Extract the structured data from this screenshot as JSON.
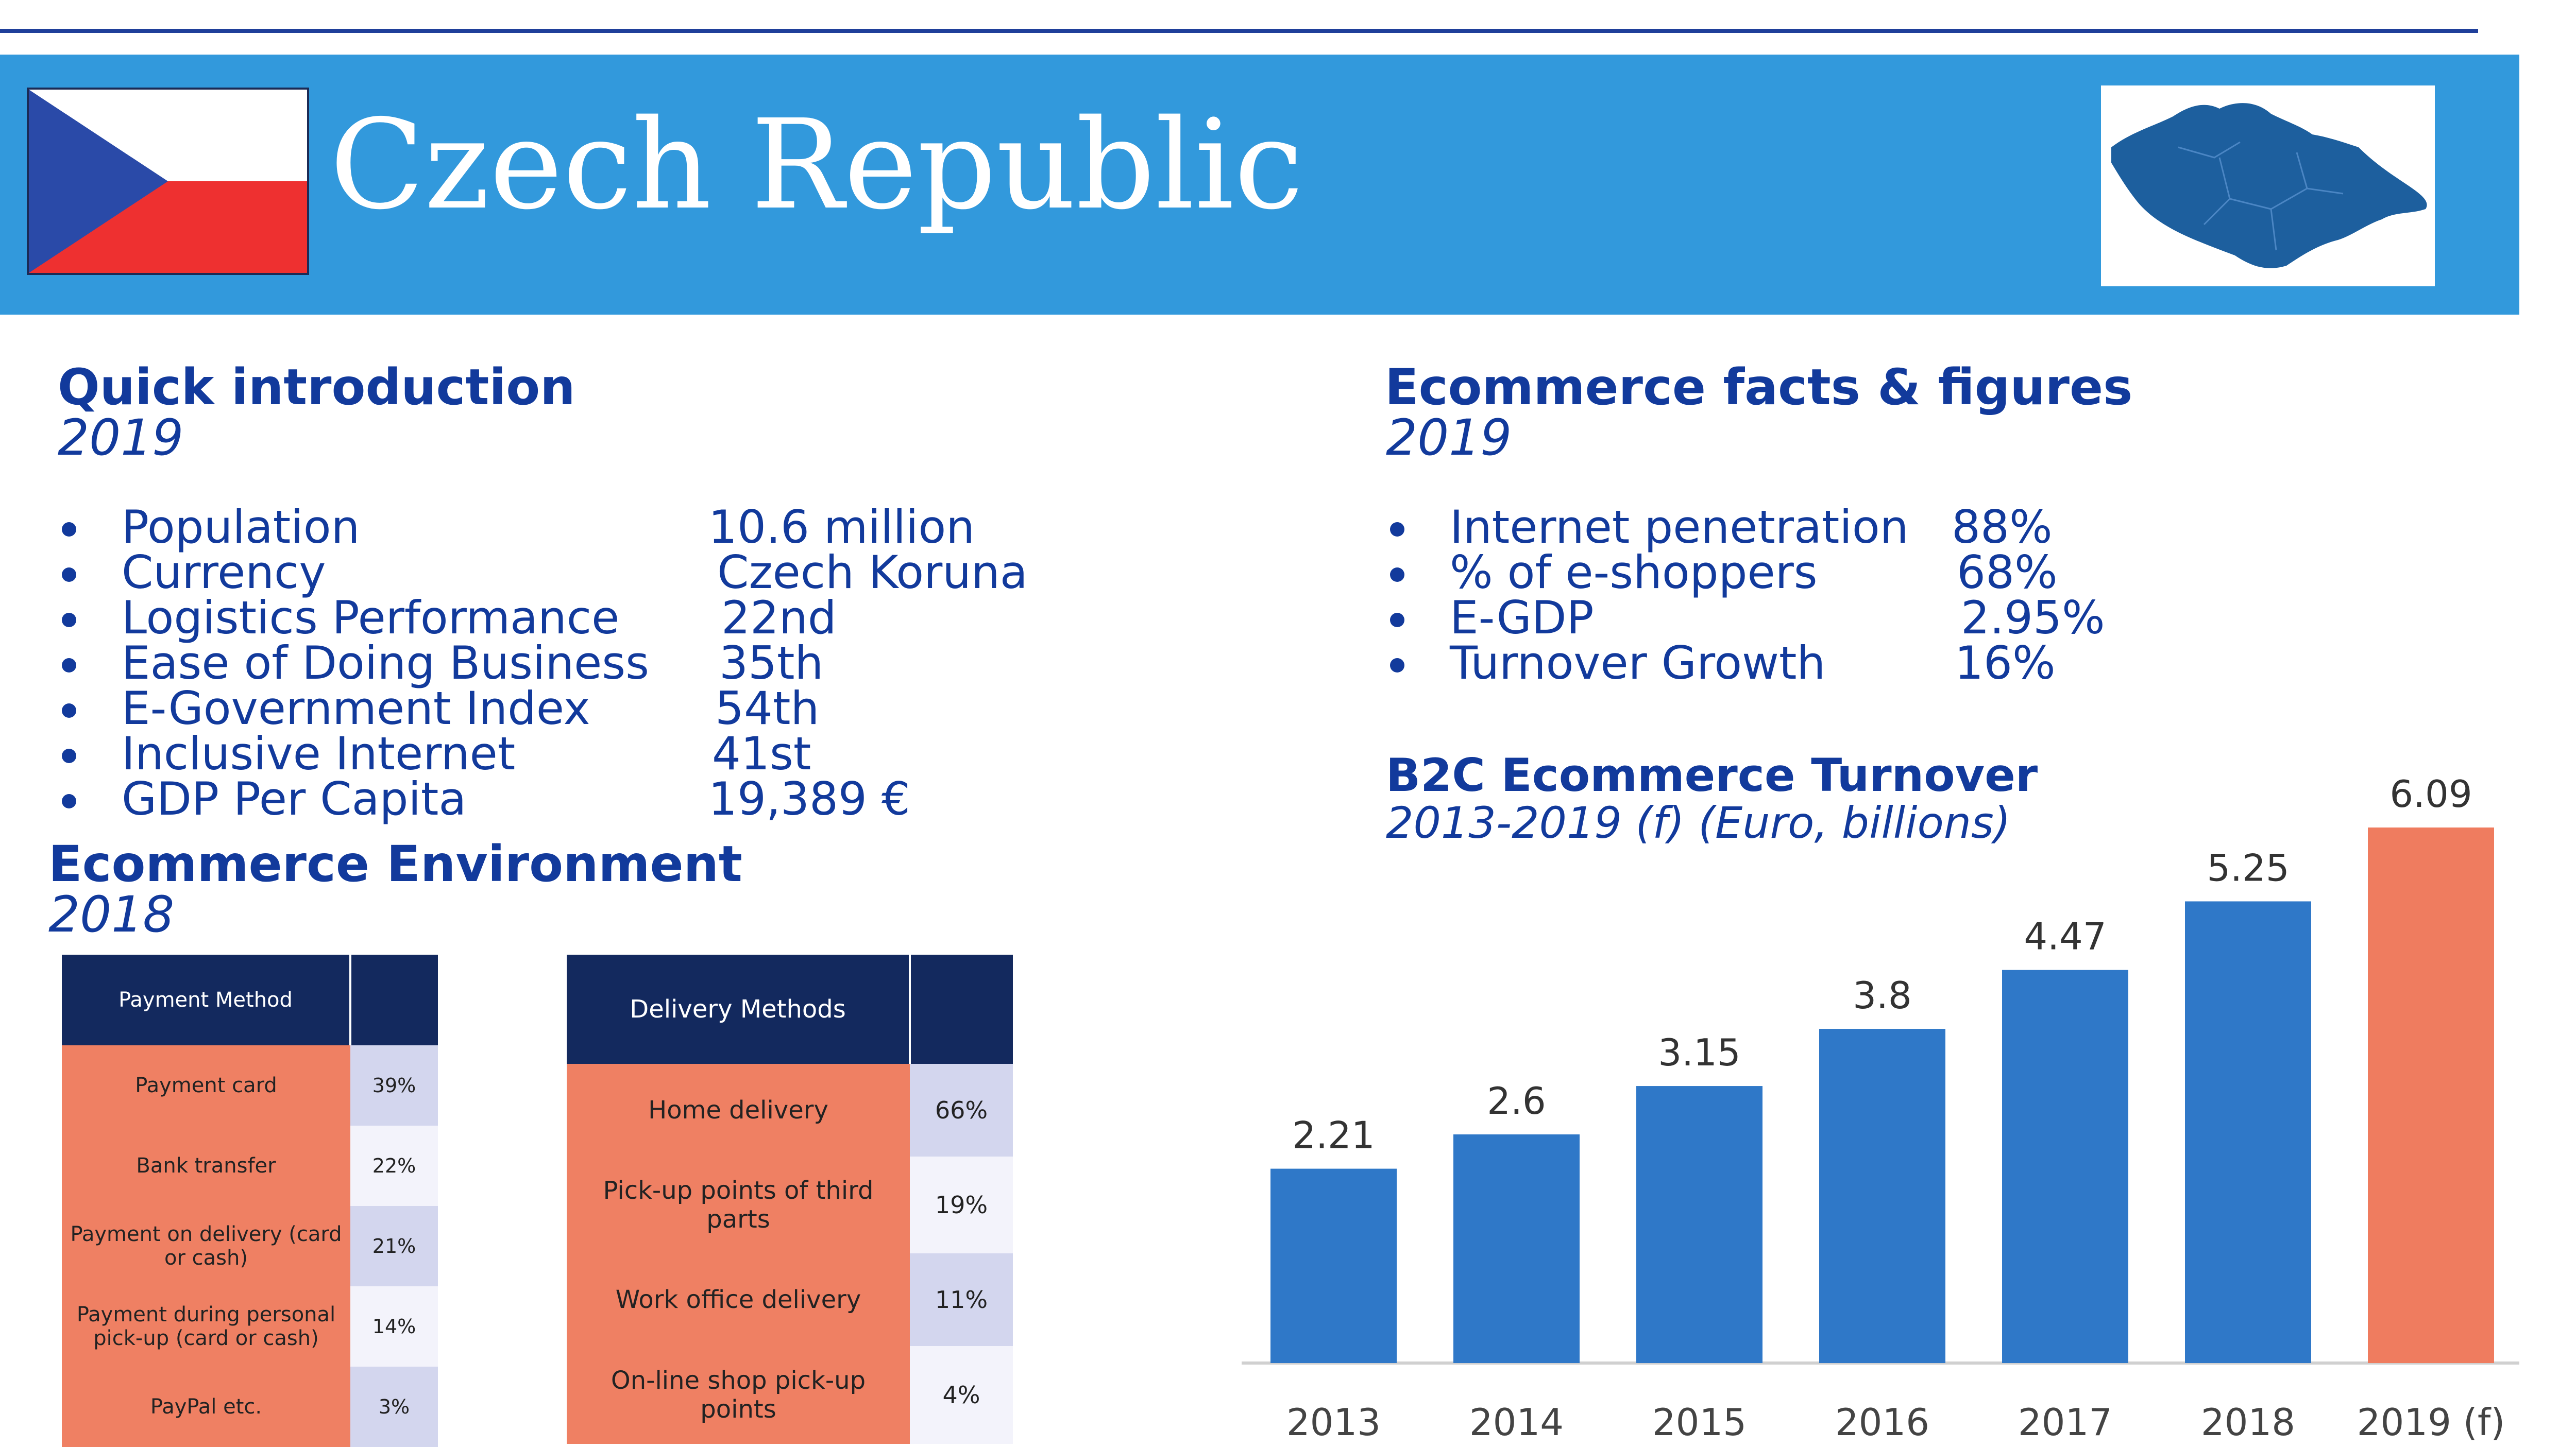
{
  "header": {
    "title": "Czech Republic",
    "flag_colors": {
      "white": "#ffffff",
      "red": "#ee3030",
      "blue": "#2a4aa8"
    },
    "map_color": "#1d5f9e"
  },
  "quick_intro": {
    "heading": "Quick introduction",
    "year": "2019",
    "items": [
      {
        "label": "Population",
        "value": "10.6 million"
      },
      {
        "label": "Currency",
        "value": "Czech Koruna"
      },
      {
        "label": "Logistics Performance",
        "value": "22nd"
      },
      {
        "label": "Ease of Doing Business",
        "value": "35th"
      },
      {
        "label": "E-Government Index",
        "value": "54th"
      },
      {
        "label": "Inclusive Internet",
        "value": "41st"
      },
      {
        "label": "GDP Per Capita",
        "value": "19,389 €"
      }
    ]
  },
  "ecom_facts": {
    "heading": "Ecommerce facts & figures",
    "year": "2019",
    "items": [
      {
        "label": "Internet penetration",
        "value": "88%"
      },
      {
        "label": "% of e-shoppers",
        "value": "68%"
      },
      {
        "label": "E-GDP",
        "value": "2.95%"
      },
      {
        "label": "Turnover Growth",
        "value": "16%"
      }
    ]
  },
  "environment": {
    "heading": "Ecommerce Environment",
    "year": "2018",
    "payment": {
      "header": "Payment Method",
      "rows": [
        {
          "label": "Payment card",
          "value": "39%"
        },
        {
          "label": "Bank transfer",
          "value": "22%"
        },
        {
          "label": "Payment on delivery (card or cash)",
          "value": "21%"
        },
        {
          "label": "Payment during personal pick-up (card or cash)",
          "value": "14%"
        },
        {
          "label": "PayPal etc.",
          "value": "3%"
        }
      ]
    },
    "delivery": {
      "header": "Delivery Methods",
      "rows": [
        {
          "label": "Home delivery",
          "value": "66%"
        },
        {
          "label": "Pick-up points of third parts",
          "value": "19%"
        },
        {
          "label": "Work office delivery",
          "value": "11%"
        },
        {
          "label": "On-line shop pick-up points",
          "value": "4%"
        }
      ]
    }
  },
  "turnover": {
    "heading": "B2C Ecommerce Turnover",
    "subtitle": "2013-2019 (f) (Euro, billions)"
  },
  "chart_data": {
    "type": "bar",
    "title": "B2C Ecommerce Turnover",
    "subtitle": "2013-2019 (f) (Euro, billions)",
    "categories": [
      "2013",
      "2014",
      "2015",
      "2016",
      "2017",
      "2018",
      "2019 (f)"
    ],
    "values": [
      2.21,
      2.6,
      3.15,
      3.8,
      4.47,
      5.25,
      6.09
    ],
    "labels": [
      "2.21",
      "2.6",
      "3.15",
      "3.8",
      "4.47",
      "5.25",
      "6.09"
    ],
    "ylim": [
      0,
      7
    ],
    "colors": [
      "#2f78c8",
      "#2f78c8",
      "#2f78c8",
      "#2f78c8",
      "#2f78c8",
      "#2f78c8",
      "#ef7c5f"
    ]
  }
}
